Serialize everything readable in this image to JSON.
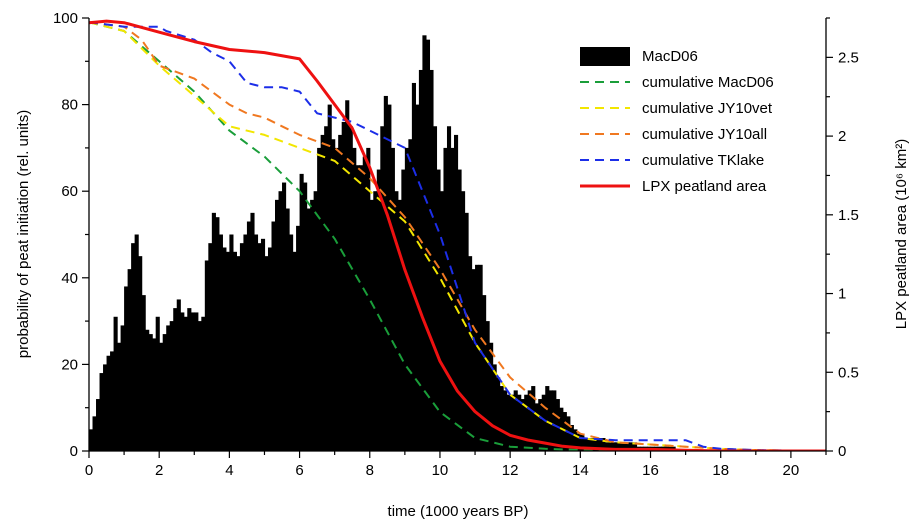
{
  "chart_data": {
    "type": "bar",
    "xlabel": "time (1000 years BP)",
    "ylabel_left": "probability of peat initiation (rel. units)",
    "ylabel_right": "LPX peatland area (10⁶ km²)",
    "xlim": [
      0,
      21
    ],
    "ylim_left": [
      0,
      100
    ],
    "ylim_right": [
      0,
      2.75
    ],
    "x_ticks": [
      "0",
      "2",
      "4",
      "6",
      "8",
      "10",
      "12",
      "14",
      "16",
      "18",
      "20"
    ],
    "y_ticks_left": [
      "0",
      "20",
      "40",
      "60",
      "80",
      "100"
    ],
    "y_ticks_right": [
      "0",
      "0.5",
      "1",
      "1.5",
      "2",
      "2.5"
    ],
    "legend_position": "top-right",
    "bar_width": 0.1,
    "histogram": {
      "name": "MacD06",
      "color": "#000000",
      "x": [
        0.05,
        0.15,
        0.25,
        0.35,
        0.45,
        0.55,
        0.65,
        0.75,
        0.85,
        0.95,
        1.05,
        1.15,
        1.25,
        1.35,
        1.45,
        1.55,
        1.65,
        1.75,
        1.85,
        1.95,
        2.05,
        2.15,
        2.25,
        2.35,
        2.45,
        2.55,
        2.65,
        2.75,
        2.85,
        2.95,
        3.05,
        3.15,
        3.25,
        3.35,
        3.45,
        3.55,
        3.65,
        3.75,
        3.85,
        3.95,
        4.05,
        4.15,
        4.25,
        4.35,
        4.45,
        4.55,
        4.65,
        4.75,
        4.85,
        4.95,
        5.05,
        5.15,
        5.25,
        5.35,
        5.45,
        5.55,
        5.65,
        5.75,
        5.85,
        5.95,
        6.05,
        6.15,
        6.25,
        6.35,
        6.45,
        6.55,
        6.65,
        6.75,
        6.85,
        6.95,
        7.05,
        7.15,
        7.25,
        7.35,
        7.45,
        7.55,
        7.65,
        7.75,
        7.85,
        7.95,
        8.05,
        8.15,
        8.25,
        8.35,
        8.45,
        8.55,
        8.65,
        8.75,
        8.85,
        8.95,
        9.05,
        9.15,
        9.25,
        9.35,
        9.45,
        9.55,
        9.65,
        9.75,
        9.85,
        9.95,
        10.05,
        10.15,
        10.25,
        10.35,
        10.45,
        10.55,
        10.65,
        10.75,
        10.85,
        10.95,
        11.05,
        11.15,
        11.25,
        11.35,
        11.45,
        11.55,
        11.65,
        11.75,
        11.85,
        11.95,
        12.05,
        12.15,
        12.25,
        12.35,
        12.45,
        12.55,
        12.65,
        12.75,
        12.85,
        12.95,
        13.05,
        13.15,
        13.25,
        13.35,
        13.45,
        13.55,
        13.65,
        13.75,
        13.85,
        13.95,
        14.05,
        14.15,
        14.25,
        14.35,
        14.45,
        14.55,
        14.65,
        14.75,
        14.85,
        14.95,
        15.05,
        15.15,
        15.25,
        15.35,
        15.45,
        15.55,
        15.65,
        15.75,
        15.85,
        15.95,
        16.05,
        16.15,
        16.25,
        16.35,
        16.45,
        16.55,
        16.65,
        16.75,
        16.85,
        16.95,
        17.05,
        17.15,
        17.25,
        17.35,
        17.45,
        17.55,
        17.65,
        17.75,
        17.85,
        17.95
      ],
      "values": [
        5,
        8,
        12,
        18,
        20,
        22,
        23,
        31,
        25,
        29,
        38,
        42,
        48,
        50,
        45,
        36,
        28,
        27,
        26,
        31,
        25,
        27,
        29,
        30,
        33,
        35,
        32,
        31,
        33,
        32,
        32,
        30,
        31,
        44,
        48,
        55,
        54,
        50,
        47,
        46,
        50,
        46,
        45,
        48,
        50,
        53,
        55,
        50,
        48,
        49,
        45,
        47,
        53,
        58,
        60,
        62,
        56,
        50,
        46,
        52,
        64,
        62,
        56,
        58,
        60,
        70,
        73,
        75,
        80,
        72,
        70,
        73,
        76,
        81,
        75,
        70,
        66,
        66,
        68,
        70,
        58,
        60,
        65,
        75,
        82,
        80,
        70,
        60,
        58,
        65,
        70,
        72,
        85,
        80,
        88,
        96,
        95,
        88,
        75,
        65,
        60,
        70,
        75,
        70,
        73,
        65,
        60,
        55,
        45,
        42,
        43,
        43,
        36,
        30,
        25,
        20,
        17,
        15,
        14,
        13,
        13,
        14,
        13,
        12,
        13,
        14,
        15,
        11,
        12,
        13,
        15,
        14,
        14,
        12,
        10,
        9,
        8,
        6,
        5,
        4,
        4,
        3,
        3,
        3,
        3,
        3,
        3,
        2,
        2,
        2,
        2,
        2,
        2,
        2,
        2,
        2,
        1,
        1,
        1,
        1,
        1,
        1,
        1,
        1,
        1,
        1,
        1,
        0,
        0,
        0,
        0,
        0,
        0,
        0,
        0,
        0,
        0,
        0,
        0,
        0
      ]
    },
    "series": [
      {
        "name": "cumulative MacD06",
        "color": "#1a9e3a",
        "dash": "dashed",
        "axis": "left",
        "x": [
          0,
          1,
          2,
          3,
          4,
          5,
          6,
          7,
          8,
          9,
          10,
          11,
          12,
          13,
          14,
          15,
          16,
          17,
          18,
          21
        ],
        "values": [
          99,
          97,
          90,
          83,
          74,
          68,
          60,
          49,
          35,
          20,
          9,
          3,
          1,
          0.5,
          0.2,
          0.1,
          0,
          0,
          0,
          0
        ]
      },
      {
        "name": "cumulative JY10vet",
        "color": "#f2e600",
        "dash": "dashed",
        "axis": "left",
        "x": [
          0,
          1,
          2,
          3,
          4,
          5,
          6,
          7,
          8,
          9,
          10,
          11,
          12,
          13,
          14,
          15,
          16,
          17,
          18,
          19,
          21
        ],
        "values": [
          99,
          97,
          89,
          82,
          75,
          73,
          70,
          67,
          60,
          53,
          40,
          25,
          13,
          7,
          3,
          2,
          1.5,
          1,
          0.5,
          0.2,
          0
        ]
      },
      {
        "name": "cumulative JY10all",
        "color": "#f07820",
        "dash": "dashed",
        "axis": "left",
        "x": [
          0,
          1,
          1.5,
          2,
          3,
          3.5,
          4,
          4.5,
          5,
          5.5,
          6,
          7,
          8,
          9,
          10,
          11,
          12,
          13,
          14,
          15,
          16,
          17,
          18,
          19,
          21
        ],
        "values": [
          99,
          98,
          95,
          89,
          86,
          83,
          80,
          78,
          77,
          75,
          73,
          70,
          63,
          54,
          42,
          28,
          17,
          10,
          4,
          2,
          1.5,
          1,
          0.5,
          0.2,
          0
        ]
      },
      {
        "name": "cumulative TKlake",
        "color": "#1c2ee8",
        "dash": "dashed",
        "axis": "left",
        "x": [
          0,
          1,
          2,
          2.2,
          3,
          3.5,
          4,
          4.5,
          5,
          5.5,
          6,
          6.5,
          7,
          7.5,
          8,
          9,
          10,
          11,
          12,
          13,
          14,
          15,
          16,
          17,
          17.5,
          18,
          19,
          21
        ],
        "values": [
          99,
          98,
          98,
          97,
          95,
          92,
          90,
          85,
          84,
          84,
          83,
          78,
          77,
          76,
          74,
          70,
          50,
          25,
          13,
          7,
          3,
          2.5,
          2.5,
          2.5,
          1,
          0.5,
          0.2,
          0
        ]
      },
      {
        "name": "LPX peatland area",
        "color": "#ee1111",
        "dash": "solid",
        "axis": "right",
        "x": [
          0,
          0.5,
          1,
          2,
          3,
          4,
          5,
          6,
          6.5,
          7,
          7.5,
          8,
          8.5,
          9,
          9.5,
          10,
          10.5,
          11,
          11.5,
          12,
          12.5,
          13,
          13.5,
          14,
          15,
          16,
          17,
          18,
          19,
          20,
          21
        ],
        "values": [
          2.72,
          2.73,
          2.72,
          2.66,
          2.6,
          2.55,
          2.53,
          2.49,
          2.35,
          2.2,
          2.05,
          1.8,
          1.5,
          1.15,
          0.85,
          0.57,
          0.38,
          0.25,
          0.16,
          0.1,
          0.07,
          0.05,
          0.03,
          0.02,
          0.01,
          0.01,
          0.005,
          0,
          0,
          0,
          0
        ]
      }
    ]
  }
}
